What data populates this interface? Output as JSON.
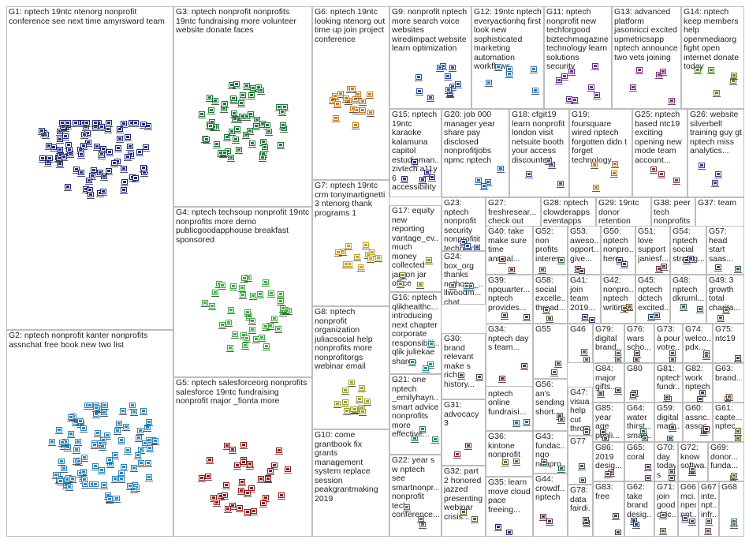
{
  "graph": {
    "groups": [
      {
        "id": "G1",
        "label": "G1: nptech 19ntc ntenorg nonprofit conference see next time amyrsward team",
        "color": "#1f2a7a",
        "nodes": 90
      },
      {
        "id": "G2",
        "label": "G2: nptech nonprofit kanter nonprofits assnchat free book new two list",
        "color": "#2a86b8",
        "nodes": 95
      },
      {
        "id": "G3",
        "label": "G3: nptech nonprofit nonprofits 19ntc fundraising more volunteer website donate faces",
        "color": "#1f7a3a",
        "nodes": 60
      },
      {
        "id": "G4",
        "label": "G4: nptech techsoup nonprofit 19ntc nonprofits more demo publicgoodapphouse breakfast sponsored",
        "color": "#3fae3f",
        "nodes": 40
      },
      {
        "id": "G5",
        "label": "G5: nptech salesforceorg nonprofits salesforce 19ntc fundraising nonprofit major _fionta more",
        "color": "#8a1a1a",
        "nodes": 35
      },
      {
        "id": "G6",
        "label": "G6: nptech 19ntc looking ntenorg out time up join project conference",
        "color": "#c77d1f",
        "nodes": 18
      },
      {
        "id": "G7",
        "label": "G7: nptech 19ntc crm tonymartignetti 3 ntenorg thank programs 1",
        "color": "#c9a21f",
        "nodes": 12
      },
      {
        "id": "G8",
        "label": "G8: nptech nonprofit organization juliacsocial help nonprofits more nonprofitorgs webinar email",
        "color": "#9aa526",
        "nodes": 14
      },
      {
        "id": "G9",
        "label": "G9: nonprofit nptech more search voice websites wiredimpact website learn optimization",
        "color": "#2b4da8",
        "nodes": 12
      },
      {
        "id": "G10",
        "label": "G10: come grantbook fix grants management system replace session peakgrantmaking 2019",
        "color": "#444444",
        "nodes": 0
      },
      {
        "id": "G11",
        "label": "G11: nptech nonprofit new techforgood biztechmagazine technology learn solutions security",
        "color": "#6a2a8a",
        "nodes": 8
      },
      {
        "id": "G12",
        "label": "G12: 19ntc nptech everyactionhq first look new sophisticated marketing automation workflows",
        "color": "#2a7ab8",
        "nodes": 6
      },
      {
        "id": "G13",
        "label": "G13: advanced platform jasonricci excited upmetricsapp nptech announce two vets joining",
        "color": "#7a2a7a",
        "nodes": 5
      },
      {
        "id": "G14",
        "label": "G14: nptech keep members help openmediaorg fight open internet donate today",
        "color": "#5a8a2a",
        "nodes": 5
      },
      {
        "id": "G15",
        "label": "G15: nptech 19ntc karaoke kalamuna capitol estudioman... zivtech a11y 6 accessibility",
        "color": "#2a2a8a",
        "nodes": 5
      },
      {
        "id": "G16",
        "label": "G16: nptech qlikhealthc... introducing next chapter corporate responsibili... qlik juliekae shares",
        "color": "#2a8a8a",
        "nodes": 4
      },
      {
        "id": "G17",
        "label": "G17: equity new reporting vantage_ev... much money collected jargon jar office",
        "color": "#8a8a2a",
        "nodes": 4
      },
      {
        "id": "G19",
        "label": "G19: foursquare wired nptech forgotten didn t forget technology...",
        "color": "#b87a1a",
        "nodes": 4
      },
      {
        "id": "G20",
        "label": "G20: job 000 manager year share pay disclosed nonprofitjobs npmc nptech",
        "color": "#1a6ab8",
        "nodes": 4
      },
      {
        "id": "G18",
        "label": "G18: cfgit19 learn nonprofit london visit netsuite booth your access discounted",
        "color": "#4a4a8a",
        "nodes": 4
      },
      {
        "id": "G21",
        "label": "G21: one nptech _emilyhayn... smart advice nonprofits more effective...",
        "color": "#1a8a5a",
        "nodes": 3
      },
      {
        "id": "G22",
        "label": "G22: year s w nptech see smartnonpr... nonprofit tech conference...",
        "color": "#6a6a6a",
        "nodes": 3
      },
      {
        "id": "G23",
        "label": "G23: nptech nonprofit security nonprofitit technolo... cybersec...",
        "color": "#2a4a8a",
        "nodes": 3
      },
      {
        "id": "G24",
        "label": "G24: box_org thanks nethope_... llwoodm... chat executiv...",
        "color": "#3a7a9a",
        "nodes": 3
      },
      {
        "id": "G25",
        "label": "G25: nptech based ntc19 exciting opening new mode team account...",
        "color": "#8a3a3a",
        "nodes": 3
      },
      {
        "id": "G26",
        "label": "G26: website silverbell training guy gt nptech miss analytics...",
        "color": "#3a3a9a",
        "nodes": 3
      },
      {
        "id": "G27",
        "label": "G27: freshresear... check out previous episodes...",
        "color": "#7a4a9a",
        "nodes": 3
      },
      {
        "id": "G28",
        "label": "G28: nptech clowderapps eventapps good first step...",
        "color": "#4a8a4a",
        "nodes": 3
      },
      {
        "id": "G29",
        "label": "G29: 19ntc donor retention nptech great first day...",
        "color": "#9a4a2a",
        "nodes": 3
      },
      {
        "id": "G30",
        "label": "G30: brand relevant make s rich history...",
        "color": "#4a4a4a",
        "nodes": 2
      },
      {
        "id": "G31",
        "label": "G31: advocacy 3",
        "color": "#8a2a4a",
        "nodes": 2
      },
      {
        "id": "G32",
        "label": "G32: part 2 honored jazzed presenting webinar crisis...",
        "color": "#4a6a2a",
        "nodes": 2
      },
      {
        "id": "G33",
        "label": "G33: nptech online fundraisi...",
        "color": "#2a6a8a",
        "nodes": 2
      },
      {
        "id": "G34",
        "label": "G34: nptech day s team...",
        "color": "#6a2a2a",
        "nodes": 2
      },
      {
        "id": "G35",
        "label": "G35: learn move cloud pace freeing...",
        "color": "#2a2a6a",
        "nodes": 2
      },
      {
        "id": "G36",
        "label": "G36: kintone nonprofit",
        "color": "#6a6a2a",
        "nodes": 2
      },
      {
        "id": "G37",
        "label": "G37: team",
        "color": "#2a6a6a",
        "nodes": 2
      },
      {
        "id": "G38",
        "label": "G38: peer tech nonprofits nptech 19ntc...",
        "color": "#5a2a6a",
        "nodes": 2
      },
      {
        "id": "G39",
        "label": "G39: npquarter... nptech provides...",
        "color": "#2a5a3a",
        "nodes": 2
      },
      {
        "id": "G40",
        "label": "G40: take make sure time annual...",
        "color": "#6a3a2a",
        "nodes": 2
      },
      {
        "id": "G41",
        "label": "G41: join team 2019...",
        "color": "#3a3a6a",
        "nodes": 2
      },
      {
        "id": "G42",
        "label": "G42: nonpro... nptech writing...",
        "color": "#6a5a2a",
        "nodes": 2
      },
      {
        "id": "G43",
        "label": "G43: fundac... ngo nonpro...",
        "color": "#2a6a4a",
        "nodes": 2
      },
      {
        "id": "G44",
        "label": "G44: crowdf... nptech",
        "color": "#5a2a4a",
        "nodes": 2
      },
      {
        "id": "G45",
        "label": "G45: nptech dctech excited...",
        "color": "#2a4a6a",
        "nodes": 2
      },
      {
        "id": "G46",
        "label": "G46",
        "color": "#4a6a4a",
        "nodes": 2
      },
      {
        "id": "G47",
        "label": "G47: visua... help cut throu...",
        "color": "#6a4a6a",
        "nodes": 2
      },
      {
        "id": "G48",
        "label": "G48: nptech dkruml...",
        "color": "#3a5a5a",
        "nodes": 2
      },
      {
        "id": "G49",
        "label": "G49: 3 growth total charita...",
        "color": "#5a5a3a",
        "nodes": 2
      },
      {
        "id": "G50",
        "label": "G50: nptech nonpro... here...",
        "color": "#4a3a6a",
        "nodes": 2
      },
      {
        "id": "G51",
        "label": "G51: love support janiesf...",
        "color": "#6a3a4a",
        "nodes": 2
      },
      {
        "id": "G52",
        "label": "G52: non profits interes...",
        "color": "#3a6a3a",
        "nodes": 2
      },
      {
        "id": "G53",
        "label": "G53: aweso... opport... give...",
        "color": "#5a3a3a",
        "nodes": 2
      },
      {
        "id": "G54",
        "label": "G54: nptech social strateg...",
        "color": "#3a3a5a",
        "nodes": 2
      },
      {
        "id": "G55",
        "label": "G55",
        "color": "#4a5a4a",
        "nodes": 2
      },
      {
        "id": "G56",
        "label": "G56: an's sending short...",
        "color": "#5a4a5a",
        "nodes": 2
      },
      {
        "id": "G57",
        "label": "G57: head start saas...",
        "color": "#3a5a4a",
        "nodes": 2
      },
      {
        "id": "G58",
        "label": "G58: social excelle... thread...",
        "color": "#5a4a3a",
        "nodes": 2
      },
      {
        "id": "G59",
        "label": "G59: digital mark...",
        "color": "#2a5a6a",
        "nodes": 2
      },
      {
        "id": "G60",
        "label": "G60: assnc... assoc...",
        "color": "#6a2a5a",
        "nodes": 2
      },
      {
        "id": "G61",
        "label": "G61: capte... nptec...",
        "color": "#5a6a2a",
        "nodes": 2
      },
      {
        "id": "G62",
        "label": "G62: take brand desig...",
        "color": "#2a3a6a",
        "nodes": 2
      },
      {
        "id": "G63",
        "label": "G63: brand...",
        "color": "#6a5a3a",
        "nodes": 2
      },
      {
        "id": "G64",
        "label": "G64: water thirst... smart...",
        "color": "#3a6a5a",
        "nodes": 2
      },
      {
        "id": "G65",
        "label": "G65: coral",
        "color": "#5a3a5a",
        "nodes": 2
      },
      {
        "id": "G66",
        "label": "G66: mci... nped npt...",
        "color": "#4a4a6a",
        "nodes": 2
      },
      {
        "id": "G67",
        "label": "G67: inte... npt... infr...",
        "color": "#6a4a4a",
        "nodes": 2
      },
      {
        "id": "G68",
        "label": "G68",
        "color": "#4a6a6a",
        "nodes": 2
      },
      {
        "id": "G69",
        "label": "G69: donor... funda...",
        "color": "#6a6a4a",
        "nodes": 2
      },
      {
        "id": "G70",
        "label": "G70: day today s",
        "color": "#4a4a5a",
        "nodes": 2
      },
      {
        "id": "G71",
        "label": "G71: join good chic...",
        "color": "#5a5a4a",
        "nodes": 2
      },
      {
        "id": "G72",
        "label": "G72: know softwa...",
        "color": "#4a5a5a",
        "nodes": 2
      },
      {
        "id": "G73",
        "label": "G73: à pour votre...",
        "color": "#5a4a4a",
        "nodes": 2
      },
      {
        "id": "G74",
        "label": "G74: welco... pdx...",
        "color": "#4a5a3a",
        "nodes": 2
      },
      {
        "id": "G75",
        "label": "G75: ntc19",
        "color": "#3a4a5a",
        "nodes": 2
      },
      {
        "id": "G76",
        "label": "G76: wars scho...",
        "color": "#5a3a4a",
        "nodes": 2
      },
      {
        "id": "G77",
        "label": "G77",
        "color": "#3a5a3a",
        "nodes": 2
      },
      {
        "id": "G78",
        "label": "G78: data fairdi...",
        "color": "#4a3a5a",
        "nodes": 2
      },
      {
        "id": "G79",
        "label": "G79: digital brand...",
        "color": "#5a5a5a",
        "nodes": 2
      },
      {
        "id": "G80",
        "label": "G80",
        "color": "#3a4a4a",
        "nodes": 2
      },
      {
        "id": "G81",
        "label": "G81: nptech fundr...",
        "color": "#4a4a3a",
        "nodes": 2
      },
      {
        "id": "G82",
        "label": "G82: work nptech",
        "color": "#3a3a4a",
        "nodes": 2
      },
      {
        "id": "G83",
        "label": "G83: free",
        "color": "#4a3a4a",
        "nodes": 2
      },
      {
        "id": "G84",
        "label": "G84: major gifts...",
        "color": "#3a4a3a",
        "nodes": 2
      },
      {
        "id": "G85",
        "label": "G85: year age publi...",
        "color": "#4a4a4a",
        "nodes": 2
      },
      {
        "id": "G86",
        "label": "G86: 2019 desig...",
        "color": "#5a4a3a",
        "nodes": 2
      }
    ]
  }
}
